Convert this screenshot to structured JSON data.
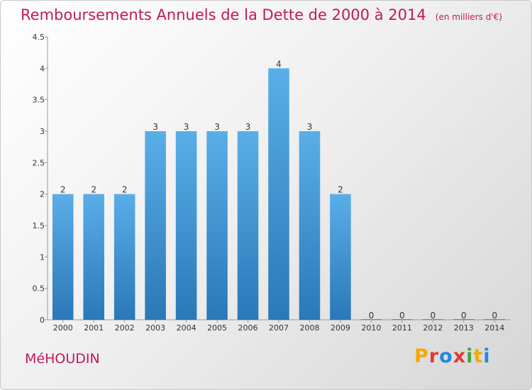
{
  "header": {
    "title": "Remboursements Annuels de la Dette de 2000 à 2014",
    "unit": "(en milliers d'€)"
  },
  "footer": {
    "commune": "MéHOUDIN",
    "logo_text": "Proxiti",
    "logo_colors": [
      "#f5a800",
      "#e53935",
      "#1e88e5",
      "#e53935",
      "#43a047",
      "#f5a800",
      "#1e88e5"
    ]
  },
  "chart_data": {
    "type": "bar",
    "categories": [
      "2000",
      "2001",
      "2002",
      "2003",
      "2004",
      "2005",
      "2006",
      "2007",
      "2008",
      "2009",
      "2010",
      "2011",
      "2012",
      "2013",
      "2014"
    ],
    "values": [
      2,
      2,
      2,
      3,
      3,
      3,
      3,
      4,
      3,
      2,
      0,
      0,
      0,
      0,
      0
    ],
    "value_labels": [
      "2",
      "2",
      "2",
      "3",
      "3",
      "3",
      "3",
      "4",
      "3",
      "2",
      "0",
      "0",
      "0",
      "0",
      "0"
    ],
    "ytick_labels": [
      "0",
      "0.5",
      "1",
      "1.5",
      "2",
      "2.5",
      "3",
      "3.5",
      "4",
      "4.5"
    ],
    "ylim": [
      0,
      4.5
    ],
    "grid": false,
    "bar_color_top": "#5aaee8",
    "bar_color_bottom": "#2a78b8"
  }
}
